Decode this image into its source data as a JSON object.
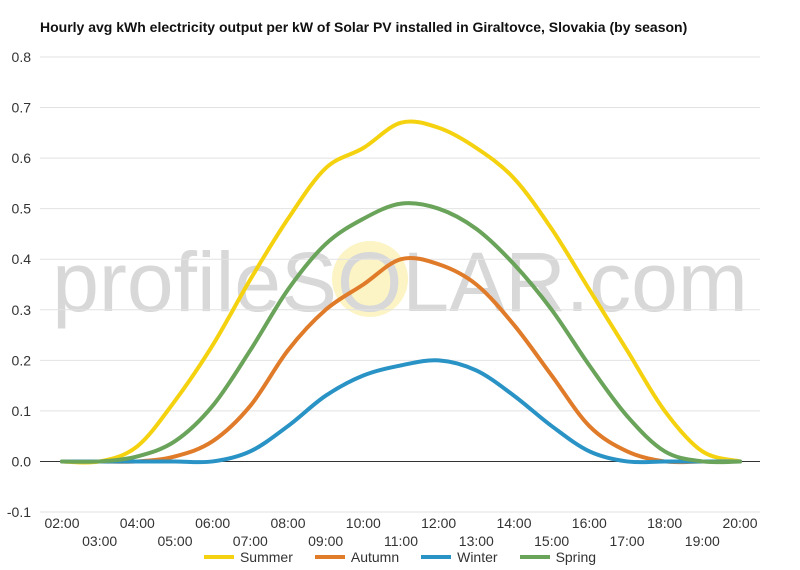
{
  "chart_data": {
    "type": "line",
    "title": "Hourly avg kWh electricity output per kW of Solar PV installed in Giraltovce, Slovakia (by season)",
    "watermark": "profileSOLAR.com",
    "x_labels_upper": [
      "02:00",
      "04:00",
      "06:00",
      "08:00",
      "10:00",
      "12:00",
      "14:00",
      "16:00",
      "18:00",
      "20:00"
    ],
    "x_labels_lower": [
      "03:00",
      "05:00",
      "07:00",
      "09:00",
      "11:00",
      "13:00",
      "15:00",
      "17:00",
      "19:00"
    ],
    "x": [
      "02:00",
      "03:00",
      "04:00",
      "05:00",
      "06:00",
      "07:00",
      "08:00",
      "09:00",
      "10:00",
      "11:00",
      "12:00",
      "13:00",
      "14:00",
      "15:00",
      "16:00",
      "17:00",
      "18:00",
      "19:00",
      "20:00"
    ],
    "ylim": [
      -0.1,
      0.8
    ],
    "yticks": [
      "-0.1",
      "0.0",
      "0.1",
      "0.2",
      "0.3",
      "0.4",
      "0.5",
      "0.6",
      "0.7",
      "0.8"
    ],
    "grid": true,
    "legend_position": "bottom",
    "series": [
      {
        "name": "Summer",
        "color": "#f5d20f",
        "values": [
          0.0,
          0.0,
          0.03,
          0.12,
          0.23,
          0.36,
          0.48,
          0.58,
          0.62,
          0.67,
          0.66,
          0.62,
          0.56,
          0.46,
          0.34,
          0.22,
          0.1,
          0.02,
          0.0
        ]
      },
      {
        "name": "Autumn",
        "color": "#e07b2a",
        "values": [
          0.0,
          0.0,
          0.0,
          0.01,
          0.04,
          0.11,
          0.22,
          0.3,
          0.35,
          0.4,
          0.39,
          0.35,
          0.27,
          0.17,
          0.07,
          0.02,
          0.0,
          0.0,
          0.0
        ]
      },
      {
        "name": "Winter",
        "color": "#2a93c5",
        "values": [
          0.0,
          0.0,
          0.0,
          0.0,
          0.0,
          0.02,
          0.07,
          0.13,
          0.17,
          0.19,
          0.2,
          0.18,
          0.13,
          0.07,
          0.02,
          0.0,
          0.0,
          0.0,
          0.0
        ]
      },
      {
        "name": "Spring",
        "color": "#6aa35a",
        "values": [
          0.0,
          0.0,
          0.01,
          0.04,
          0.11,
          0.22,
          0.34,
          0.43,
          0.48,
          0.51,
          0.5,
          0.46,
          0.39,
          0.3,
          0.19,
          0.09,
          0.02,
          0.0,
          0.0
        ]
      }
    ]
  }
}
